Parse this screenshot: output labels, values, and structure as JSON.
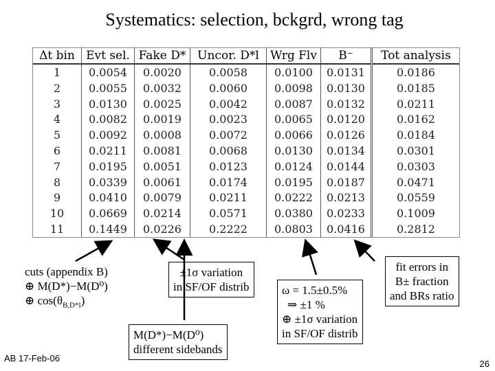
{
  "title": "Systematics: selection, bckgrd, wrong tag",
  "table": {
    "headers": [
      "Δt bin",
      "Evt sel.",
      "Fake D*",
      "Uncor. D*l",
      "Wrg Flv",
      "B⁻",
      "Tot analysis"
    ],
    "rows": [
      [
        "1",
        "0.0054",
        "0.0020",
        "0.0058",
        "0.0100",
        "0.0131",
        "0.0186"
      ],
      [
        "2",
        "0.0055",
        "0.0032",
        "0.0060",
        "0.0098",
        "0.0130",
        "0.0185"
      ],
      [
        "3",
        "0.0130",
        "0.0025",
        "0.0042",
        "0.0087",
        "0.0132",
        "0.0211"
      ],
      [
        "4",
        "0.0082",
        "0.0019",
        "0.0023",
        "0.0065",
        "0.0120",
        "0.0162"
      ],
      [
        "5",
        "0.0092",
        "0.0008",
        "0.0072",
        "0.0066",
        "0.0126",
        "0.0184"
      ],
      [
        "6",
        "0.0211",
        "0.0081",
        "0.0068",
        "0.0130",
        "0.0134",
        "0.0301"
      ],
      [
        "7",
        "0.0195",
        "0.0051",
        "0.0123",
        "0.0124",
        "0.0144",
        "0.0303"
      ],
      [
        "8",
        "0.0339",
        "0.0061",
        "0.0174",
        "0.0195",
        "0.0187",
        "0.0471"
      ],
      [
        "9",
        "0.0410",
        "0.0079",
        "0.0211",
        "0.0222",
        "0.0213",
        "0.0559"
      ],
      [
        "10",
        "0.0669",
        "0.0214",
        "0.0571",
        "0.0380",
        "0.0233",
        "0.1009"
      ],
      [
        "11",
        "0.1449",
        "0.0226",
        "0.2222",
        "0.0803",
        "0.0416",
        "0.2812"
      ]
    ]
  },
  "notes": {
    "cuts": {
      "line1": "cuts (appendix B)",
      "line2_sym": "⊕",
      "line2_text": "M(D*)−M(D⁰)",
      "line3_sym": "⊕",
      "line3_text": "cos(θ",
      "line3_sub": "B,D*l",
      "line3_end": ")"
    },
    "variation": {
      "line1": "±1σ variation",
      "line2": "in SF/OF distrib"
    },
    "sidebands": {
      "line1": "M(D*)−M(D⁰)",
      "line2": "different sidebands"
    },
    "omega": {
      "line1": "ω = 1.5±0.5%",
      "line2": "⇒ ±1 %",
      "line3": "⊕ ±1σ variation",
      "line4": "in SF/OF distrib"
    },
    "fit": {
      "line1": "fit errors in",
      "line2": "B± fraction",
      "line3": "and BRs ratio"
    }
  },
  "footer": {
    "left": "AB 17-Feb-06",
    "page": "26"
  }
}
